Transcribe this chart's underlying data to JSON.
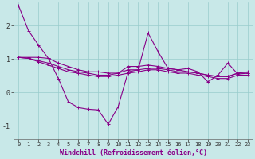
{
  "xlabel": "Windchill (Refroidissement éolien,°C)",
  "background_color": "#c8e8e8",
  "grid_color": "#98cccc",
  "line_color": "#880088",
  "xlim": [
    -0.5,
    23.5
  ],
  "ylim": [
    -1.4,
    2.7
  ],
  "yticks": [
    -1,
    0,
    1,
    2
  ],
  "xticks": [
    0,
    1,
    2,
    3,
    4,
    5,
    6,
    7,
    8,
    9,
    10,
    11,
    12,
    13,
    14,
    15,
    16,
    17,
    18,
    19,
    20,
    21,
    22,
    23
  ],
  "series": [
    [
      2.6,
      1.85,
      1.42,
      1.02,
      0.42,
      -0.28,
      -0.45,
      -0.5,
      -0.52,
      -0.95,
      -0.42,
      0.62,
      0.68,
      1.78,
      1.22,
      0.72,
      0.68,
      0.72,
      0.62,
      0.32,
      0.52,
      0.88,
      0.55,
      0.58
    ],
    [
      1.05,
      1.05,
      1.05,
      1.02,
      0.88,
      0.78,
      0.68,
      0.62,
      0.62,
      0.58,
      0.58,
      0.78,
      0.78,
      0.82,
      0.78,
      0.72,
      0.68,
      0.62,
      0.58,
      0.52,
      0.48,
      0.48,
      0.58,
      0.62
    ],
    [
      1.05,
      1.02,
      0.95,
      0.88,
      0.78,
      0.68,
      0.62,
      0.58,
      0.52,
      0.52,
      0.58,
      0.68,
      0.68,
      0.72,
      0.72,
      0.68,
      0.62,
      0.62,
      0.58,
      0.52,
      0.48,
      0.48,
      0.58,
      0.58
    ],
    [
      1.05,
      1.02,
      0.92,
      0.82,
      0.72,
      0.62,
      0.58,
      0.52,
      0.48,
      0.48,
      0.52,
      0.58,
      0.62,
      0.68,
      0.68,
      0.62,
      0.58,
      0.58,
      0.52,
      0.48,
      0.42,
      0.42,
      0.52,
      0.52
    ]
  ],
  "tick_fontsize": 5,
  "xlabel_fontsize": 6,
  "ylabel_fontsize": 6,
  "marker_size": 3,
  "line_width": 0.8
}
